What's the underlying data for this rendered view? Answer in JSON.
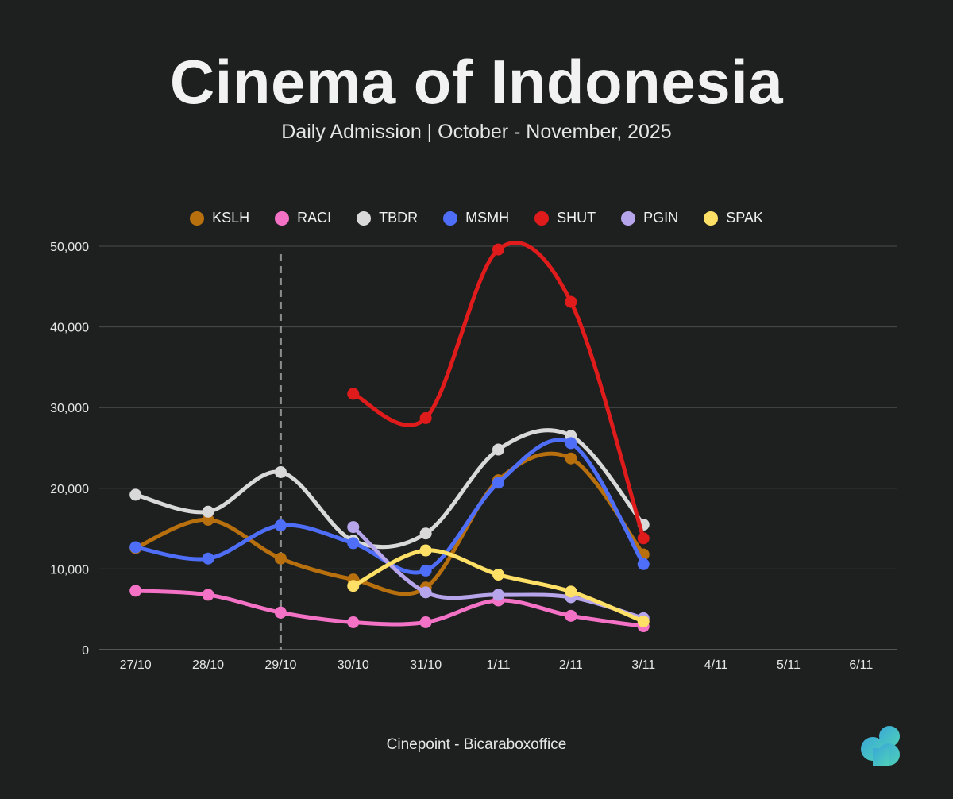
{
  "title": "Cinema of Indonesia",
  "subtitle": "Daily Admission | October - November, 2025",
  "source": "Cinepoint - Bicaraboxoffice",
  "logo_icon": "cloud-logo-icon",
  "chart_data": {
    "type": "line",
    "title": "Cinema of Indonesia",
    "subtitle": "Daily Admission | October - November, 2025",
    "xlabel": "",
    "ylabel": "",
    "categories": [
      "27/10",
      "28/10",
      "29/10",
      "30/10",
      "31/10",
      "1/11",
      "2/11",
      "3/11",
      "4/11",
      "5/11",
      "6/11"
    ],
    "ylim": [
      0,
      50000
    ],
    "yticks": [
      0,
      10000,
      20000,
      30000,
      40000,
      50000
    ],
    "ytick_labels": [
      "0",
      "10,000",
      "20,000",
      "30,000",
      "40,000",
      "50,000"
    ],
    "grid": true,
    "legend_position": "top-center",
    "reference_line_category": "29/10",
    "series": [
      {
        "name": "KSLH",
        "color": "#b8700e",
        "values": [
          12600,
          16100,
          11300,
          8700,
          7700,
          21000,
          23700,
          11800,
          null,
          null,
          null
        ]
      },
      {
        "name": "RACI",
        "color": "#f472c6",
        "values": [
          7300,
          6800,
          4600,
          3400,
          3400,
          6100,
          4200,
          2900,
          null,
          null,
          null
        ]
      },
      {
        "name": "TBDR",
        "color": "#d9d9d9",
        "values": [
          19200,
          17100,
          22000,
          13500,
          14400,
          24800,
          26500,
          15500,
          null,
          null,
          null
        ]
      },
      {
        "name": "MSMH",
        "color": "#4f6ef7",
        "values": [
          12700,
          11300,
          15400,
          13200,
          9800,
          20700,
          25600,
          10600,
          null,
          null,
          null
        ]
      },
      {
        "name": "SHUT",
        "color": "#e01b1b",
        "values": [
          null,
          null,
          null,
          31700,
          28700,
          49600,
          43100,
          13800,
          null,
          null,
          null
        ]
      },
      {
        "name": "PGIN",
        "color": "#b7a5ec",
        "values": [
          null,
          null,
          null,
          15200,
          7100,
          6800,
          6500,
          3900,
          null,
          null,
          null
        ]
      },
      {
        "name": "SPAK",
        "color": "#ffe066",
        "values": [
          null,
          null,
          null,
          7900,
          12300,
          9300,
          7200,
          3500,
          null,
          null,
          null
        ]
      }
    ]
  }
}
